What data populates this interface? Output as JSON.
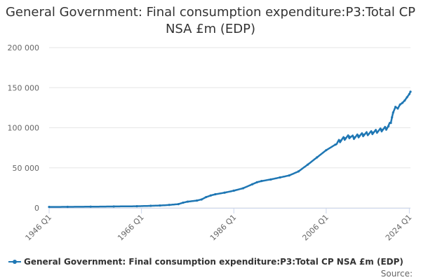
{
  "chart_data": {
    "type": "line",
    "title": "General Government: Final consumption expenditure:P3:Total CP NSA £m (EDP)",
    "y_ticks": [
      "0",
      "50 000",
      "100 000",
      "150 000",
      "200 000"
    ],
    "ylim": [
      0,
      200000
    ],
    "x_ticks": [
      "1946 Q1",
      "1966 Q1",
      "1986 Q1",
      "2006 Q1",
      "2024 Q1"
    ],
    "x_tick_years": [
      1946,
      1966,
      1986,
      2006,
      2024
    ],
    "xlim": [
      1946,
      2024.25
    ],
    "grid": true,
    "legend_placement": "bottom-left",
    "series": [
      {
        "name": "General Government: Final consumption expenditure:P3:Total CP NSA £m (EDP)",
        "color": "#1f77b4",
        "x": [
          1946,
          1950,
          1955,
          1960,
          1965,
          1968,
          1970,
          1972,
          1974,
          1975,
          1976,
          1978,
          1979,
          1980,
          1981,
          1982,
          1984,
          1986,
          1988,
          1990,
          1991,
          1992,
          1994,
          1996,
          1998,
          2000,
          2002,
          2004,
          2006,
          2008,
          2009,
          2010,
          2011,
          2012,
          2013,
          2014,
          2016,
          2018,
          2019,
          2019.5,
          2020,
          2020.25,
          2020.5,
          2021,
          2021.5,
          2022,
          2022.5,
          2023,
          2023.5,
          2024,
          2024.25
        ],
        "values": [
          1200,
          1300,
          1500,
          1800,
          2100,
          2600,
          3000,
          3700,
          4700,
          6500,
          7800,
          9200,
          10500,
          13500,
          15500,
          17000,
          19000,
          21500,
          24500,
          29500,
          32000,
          33500,
          35500,
          38000,
          40500,
          45500,
          54000,
          63000,
          72000,
          79000,
          84000,
          87000,
          89000,
          88000,
          90000,
          91500,
          94000,
          97500,
          99500,
          102000,
          106000,
          113000,
          119000,
          126000,
          124000,
          129000,
          131000,
          134000,
          138000,
          142000,
          145000
        ]
      }
    ]
  },
  "legend": {
    "label": "General Government: Final consumption expenditure:P3:Total CP NSA £m (EDP)"
  },
  "source_label": "Source:"
}
